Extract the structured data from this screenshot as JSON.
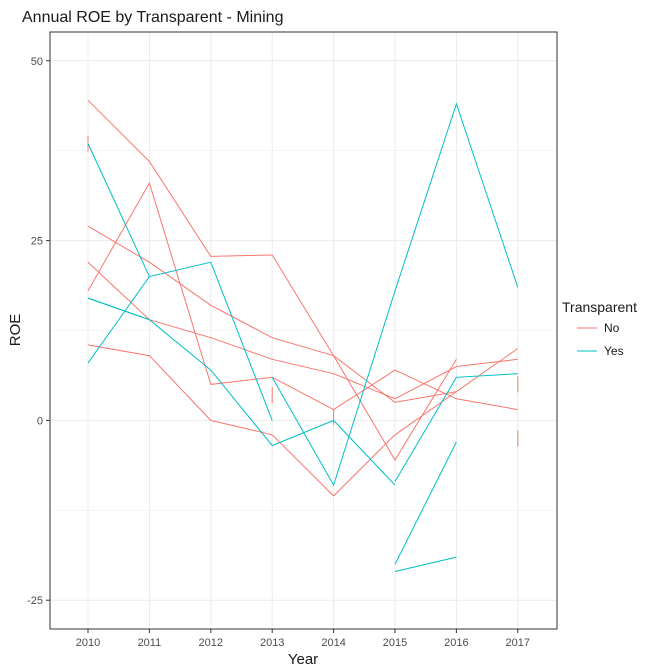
{
  "chart_data": {
    "type": "line",
    "title": "Annual ROE by Transparent - Mining",
    "xlabel": "Year",
    "ylabel": "ROE",
    "x": [
      2010,
      2011,
      2012,
      2013,
      2014,
      2015,
      2016,
      2017
    ],
    "x_tick_labels": [
      "2010",
      "2011",
      "2012",
      "2013",
      "2014",
      "2015",
      "2016",
      "2017"
    ],
    "ylim": [
      -29,
      54
    ],
    "yticks": [
      -25,
      0,
      25,
      50
    ],
    "y_tick_labels": [
      "-25",
      "0",
      "25",
      "50"
    ],
    "grid": true,
    "legend": {
      "title": "Transparent",
      "position": "right",
      "entries": [
        {
          "label": "No",
          "color": "#F8766D"
        },
        {
          "label": "Yes",
          "color": "#00BFC4"
        }
      ]
    },
    "series": [
      {
        "group": "No",
        "color": "#F8766D",
        "values": [
          44.5,
          36.0,
          22.8,
          23.0,
          9.0,
          -5.5,
          8.5,
          null
        ]
      },
      {
        "group": "No",
        "color": "#F8766D",
        "values": [
          27.0,
          22.0,
          16.0,
          11.5,
          9.0,
          2.5,
          4.0,
          10.0
        ]
      },
      {
        "group": "No",
        "color": "#F8766D",
        "values": [
          18.0,
          33.0,
          5.0,
          6.0,
          1.5,
          7.0,
          3.0,
          1.5
        ]
      },
      {
        "group": "No",
        "color": "#F8766D",
        "values": [
          22.0,
          14.0,
          11.5,
          8.5,
          6.5,
          3.0,
          7.5,
          8.5
        ]
      },
      {
        "group": "No",
        "color": "#F8766D",
        "values": [
          10.5,
          9.0,
          0.0,
          -2.0,
          -10.5,
          -2.0,
          4.0,
          null
        ]
      },
      {
        "group": "No",
        "color": "#F8766D",
        "values": [
          38.5,
          null,
          null,
          null,
          null,
          null,
          null,
          null
        ]
      },
      {
        "group": "No",
        "color": "#F8766D",
        "values": [
          null,
          null,
          null,
          3.5,
          null,
          null,
          null,
          null
        ]
      },
      {
        "group": "No",
        "color": "#F8766D",
        "values": [
          null,
          null,
          null,
          null,
          0.5,
          null,
          null,
          null
        ]
      },
      {
        "group": "No",
        "color": "#F8766D",
        "values": [
          null,
          null,
          null,
          null,
          null,
          null,
          null,
          5.0
        ]
      },
      {
        "group": "No",
        "color": "#F8766D",
        "values": [
          null,
          null,
          null,
          null,
          null,
          null,
          null,
          -2.5
        ]
      },
      {
        "group": "Yes",
        "color": "#00BFC4",
        "values": [
          38.5,
          20.0,
          22.0,
          0.0,
          null,
          null,
          null,
          null
        ]
      },
      {
        "group": "Yes",
        "color": "#00BFC4",
        "values": [
          8.0,
          20.0,
          null,
          null,
          null,
          null,
          null,
          null
        ]
      },
      {
        "group": "Yes",
        "color": "#00BFC4",
        "values": [
          17.0,
          14.0,
          7.0,
          -3.5,
          0.0,
          -9.0,
          null,
          null
        ]
      },
      {
        "group": "Yes",
        "color": "#00BFC4",
        "values": [
          17.0,
          14.0,
          null,
          null,
          null,
          null,
          null,
          null
        ]
      },
      {
        "group": "Yes",
        "color": "#00BFC4",
        "values": [
          null,
          null,
          null,
          6.0,
          -9.0,
          18.0,
          44.0,
          18.5
        ]
      },
      {
        "group": "Yes",
        "color": "#00BFC4",
        "values": [
          null,
          null,
          null,
          null,
          null,
          -8.5,
          6.0,
          6.5
        ]
      },
      {
        "group": "Yes",
        "color": "#00BFC4",
        "values": [
          null,
          null,
          null,
          null,
          null,
          -20.0,
          -3.0,
          null
        ]
      },
      {
        "group": "Yes",
        "color": "#00BFC4",
        "values": [
          null,
          null,
          null,
          null,
          null,
          -21.0,
          -19.0,
          null
        ]
      }
    ]
  }
}
